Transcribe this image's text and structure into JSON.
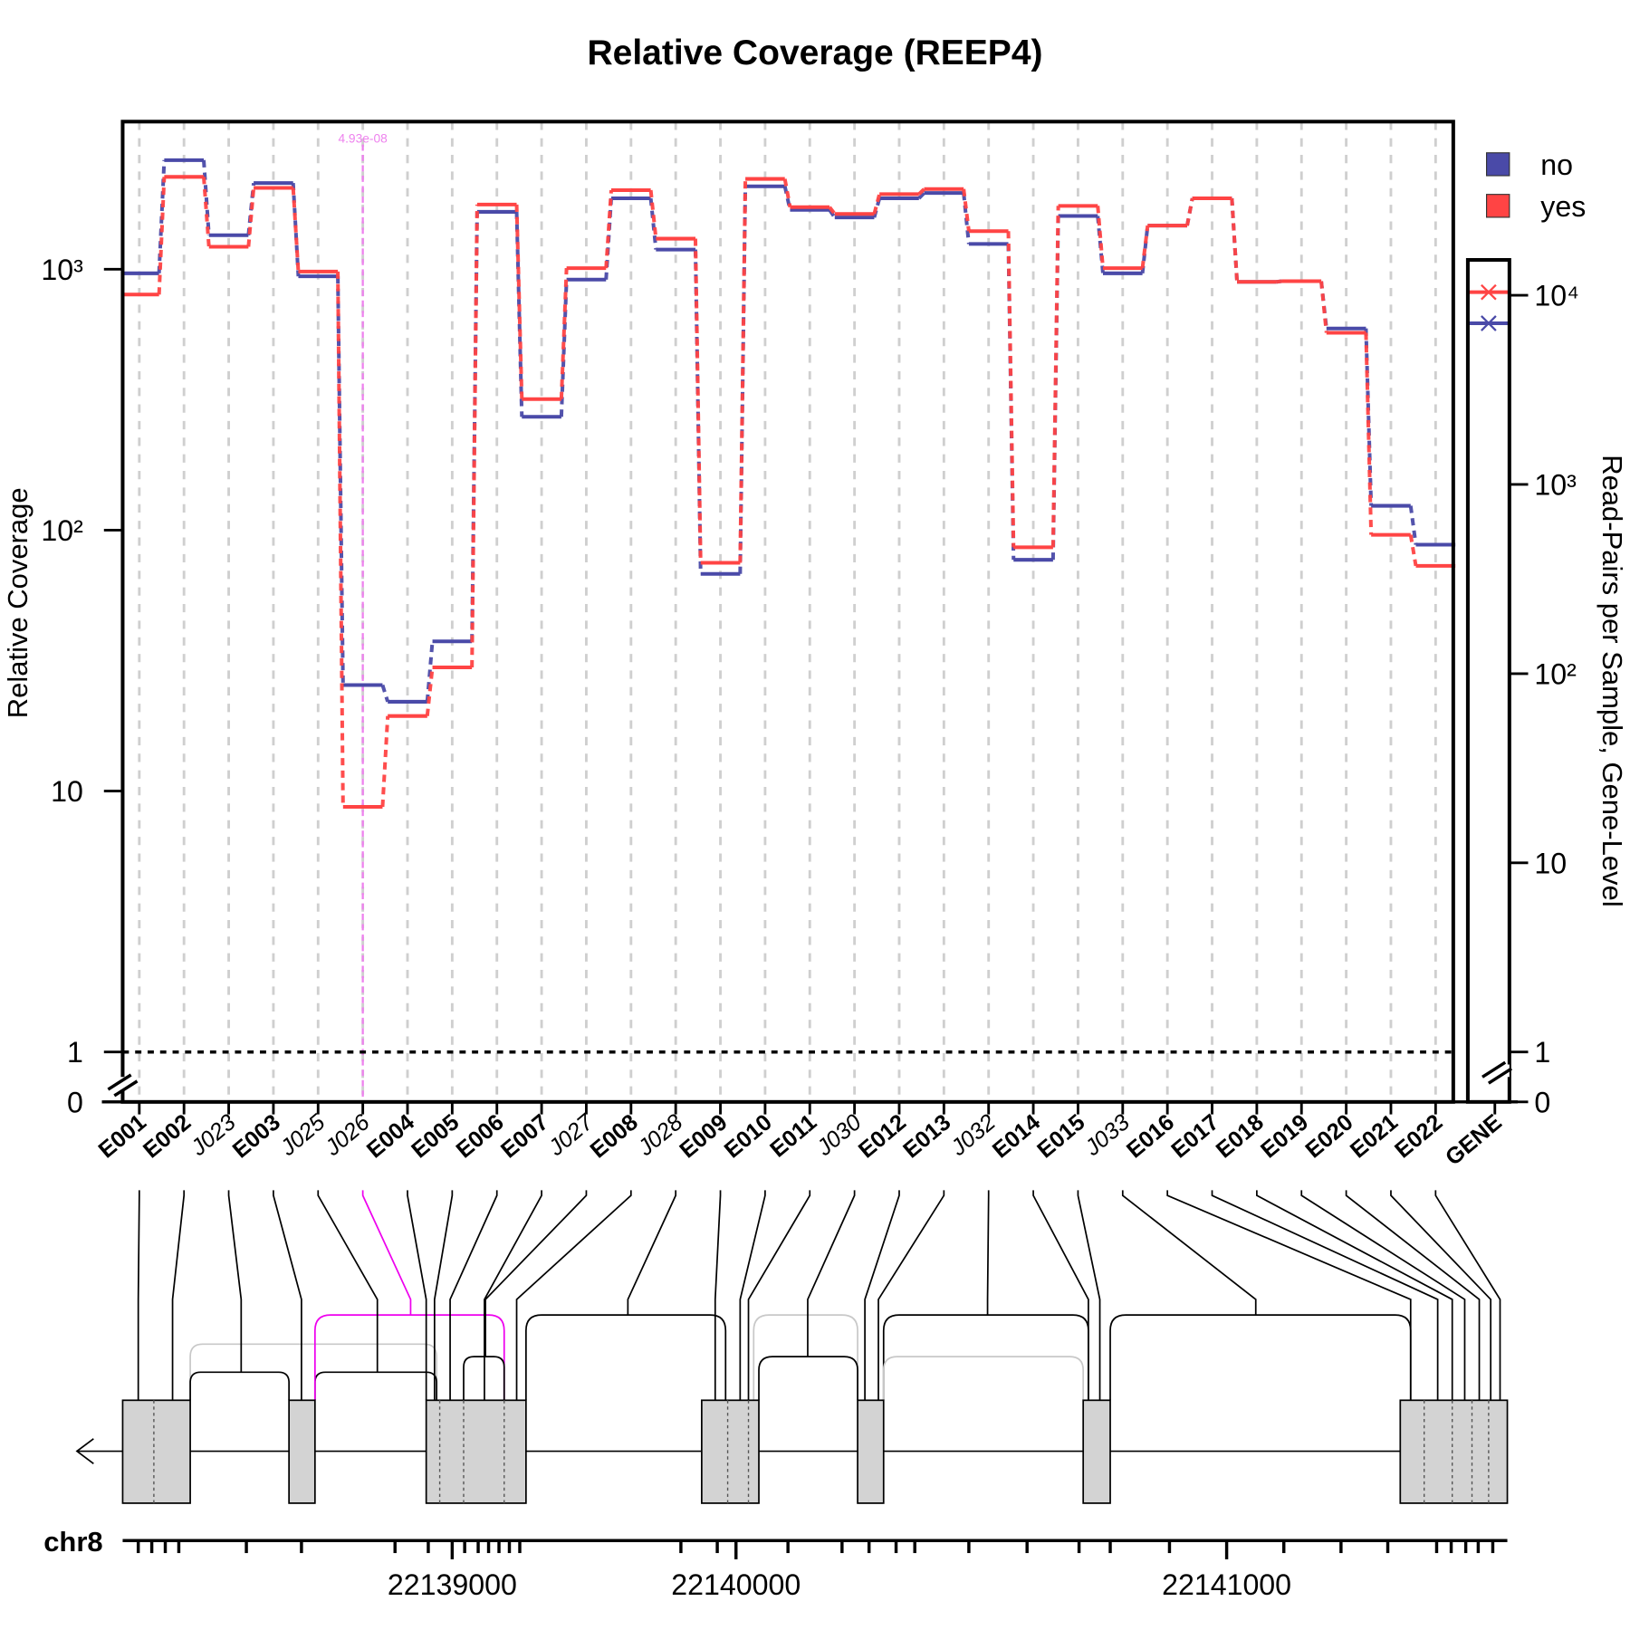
{
  "chart_data": {
    "type": "step",
    "title": "Relative Coverage (REEP4)",
    "ylabel": "Relative Coverage",
    "y2label": "Read-Pairs per Sample, Gene-Level",
    "categories": [
      "E001",
      "E002",
      "J023",
      "E003",
      "J025",
      "J026",
      "E004",
      "E005",
      "E006",
      "E007",
      "J027",
      "E008",
      "J028",
      "E009",
      "E010",
      "E011",
      "J030",
      "E012",
      "E013",
      "J032",
      "E014",
      "E015",
      "J033",
      "E016",
      "E017",
      "E018",
      "E019",
      "E020",
      "E021",
      "E022"
    ],
    "gene_category": "GENE",
    "series": [
      {
        "name": "no",
        "color": "#4a4aa8",
        "values": [
          965,
          2620,
          1350,
          2140,
          940,
          25.5,
          22,
          37.5,
          1660,
          272,
          913,
          1870,
          1190,
          68,
          2080,
          1690,
          1580,
          1870,
          1960,
          1250,
          77,
          1600,
          965,
          1470,
          1870,
          895,
          900,
          593,
          124,
          88
        ],
        "gene_value": 7110
      },
      {
        "name": "yes",
        "color": "#ff4444",
        "values": [
          800,
          2260,
          1220,
          2050,
          980,
          8.7,
          19.4,
          29.8,
          1770,
          318,
          1010,
          2010,
          1310,
          75,
          2220,
          1730,
          1630,
          1940,
          2030,
          1400,
          86,
          1750,
          1010,
          1470,
          1870,
          895,
          900,
          571,
          96,
          73
        ],
        "gene_value": 10380
      }
    ],
    "log_y": true,
    "ylim": [
      1,
      3680
    ],
    "yticks": [
      0,
      1,
      10,
      {
        "value": 100,
        "label": "10²"
      },
      {
        "value": 1000,
        "label": "10³"
      }
    ],
    "hline": 1,
    "y2lim": [
      1,
      15380
    ],
    "y2ticks": [
      0,
      1,
      10,
      {
        "value": 100,
        "label": "10²"
      },
      {
        "value": 1000,
        "label": "10³"
      },
      {
        "value": 10000,
        "label": "10⁴"
      }
    ],
    "grid": true,
    "legend": "top-right",
    "annotation": {
      "category": "J026",
      "text": "4.93e-08",
      "color": "#ee82ee"
    },
    "genome": {
      "chromosome": "chr8",
      "ticks": [
        22139000,
        22140000,
        22141000
      ]
    }
  }
}
